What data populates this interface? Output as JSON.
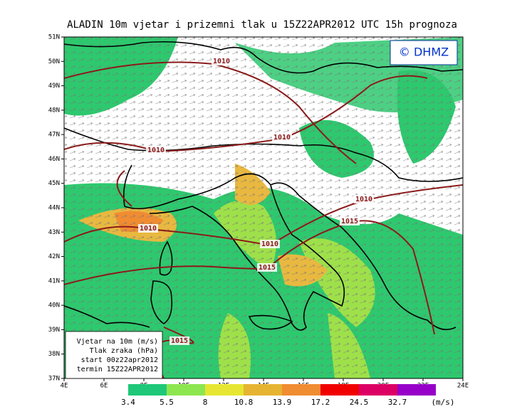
{
  "title": "ALADIN 10m vjetar i prizemni tlak u 15Z22APR2012 UTC 15h prognoza",
  "logo": "© DHMZ",
  "lat_labels": [
    "37N",
    "38N",
    "39N",
    "40N",
    "41N",
    "42N",
    "43N",
    "44N",
    "45N",
    "46N",
    "47N",
    "48N",
    "49N",
    "50N",
    "51N"
  ],
  "lon_labels": [
    "4E",
    "6E",
    "8E",
    "10E",
    "12E",
    "14E",
    "16E",
    "18E",
    "20E",
    "22E",
    "24E"
  ],
  "contour_labels": [
    "1010",
    "1010",
    "1010",
    "1010",
    "1010",
    "1010",
    "1015",
    "1015",
    "1015"
  ],
  "legend": [
    "Vjetar na 10m (m/s)",
    "Tlak zraka (hPa)",
    "start 00z22apr2012",
    "termin 15Z22APR2012"
  ],
  "colorbar": {
    "labels": [
      "3.4",
      "5.5",
      "8",
      "10.8",
      "13.9",
      "17.2",
      "24.5",
      "32.7"
    ],
    "unit": "(m/s)"
  }
}
